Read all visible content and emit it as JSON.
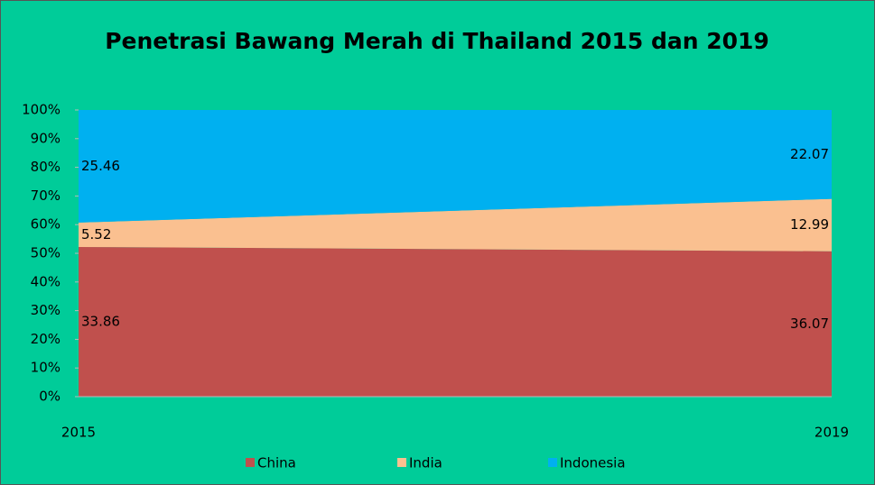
{
  "chart_data": {
    "type": "area_100_stacked",
    "title": "Penetrasi Bawang Merah di Thailand  2015 dan  2019",
    "categories": [
      "2015",
      "2019"
    ],
    "series": [
      {
        "name": "China",
        "color": "#c0504d",
        "values": [
          33.86,
          36.07
        ]
      },
      {
        "name": "India",
        "color": "#fac090",
        "values": [
          5.52,
          12.99
        ]
      },
      {
        "name": "Indonesia",
        "color": "#00b0f0",
        "values": [
          25.46,
          22.07
        ]
      }
    ],
    "ylim": [
      0,
      100
    ],
    "yticks": [
      {
        "value": 0,
        "label": "0%"
      },
      {
        "value": 10,
        "label": "10%"
      },
      {
        "value": 20,
        "label": "20%"
      },
      {
        "value": 30,
        "label": "30%"
      },
      {
        "value": 40,
        "label": "40%"
      },
      {
        "value": 50,
        "label": "50%"
      },
      {
        "value": 60,
        "label": "60%"
      },
      {
        "value": 70,
        "label": "70%"
      },
      {
        "value": 80,
        "label": "80%"
      },
      {
        "value": 90,
        "label": "90%"
      },
      {
        "value": 100,
        "label": "100%"
      }
    ],
    "background": "#00cc99"
  }
}
